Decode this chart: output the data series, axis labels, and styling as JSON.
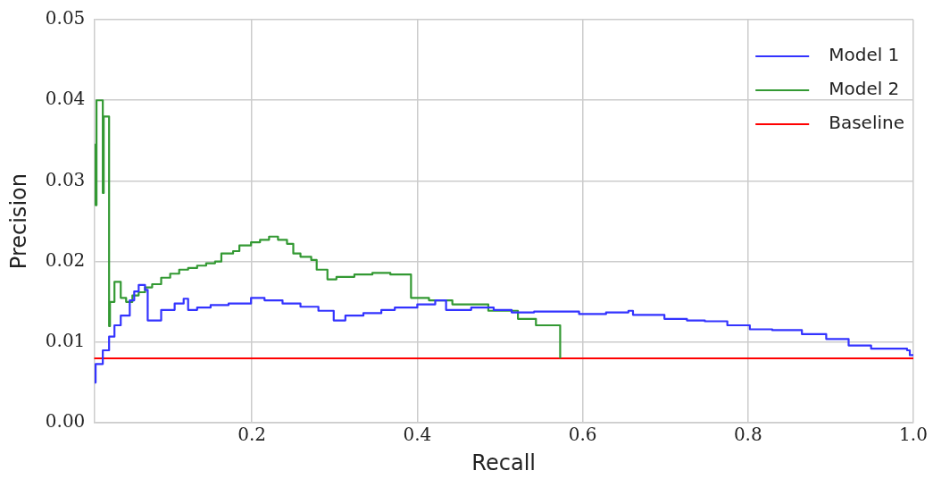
{
  "chart_data": {
    "type": "step",
    "xlabel": "Recall",
    "ylabel": "Precision",
    "xlim": [
      0.009,
      1.0
    ],
    "ylim": [
      0,
      0.05
    ],
    "xticks": [
      0.2,
      0.4,
      0.6,
      0.8,
      {
        "value": 1,
        "label": "1.0"
      }
    ],
    "yticks": [
      {
        "value": 0,
        "label": "0.00"
      },
      {
        "value": 0.01,
        "label": "0.01"
      },
      {
        "value": 0.02,
        "label": "0.02"
      },
      {
        "value": 0.03,
        "label": "0.03"
      },
      {
        "value": 0.04,
        "label": "0.04"
      },
      {
        "value": 0.05,
        "label": "0.05"
      }
    ],
    "grid": true,
    "legend": "top right",
    "line_style": "solid",
    "marker": "none",
    "series": [
      {
        "name": "Model 1",
        "color": "#3333ff",
        "x": [
          0.0098,
          0.0109,
          0.0196,
          0.0272,
          0.0337,
          0.0413,
          0.0522,
          0.0576,
          0.063,
          0.0707,
          0.0739,
          0.0902,
          0.1065,
          0.1174,
          0.1228,
          0.1337,
          0.15,
          0.1717,
          0.1989,
          0.2152,
          0.237,
          0.2587,
          0.2804,
          0.2989,
          0.313,
          0.3348,
          0.3565,
          0.3728,
          0.4,
          0.4217,
          0.4348,
          0.4652,
          0.4924,
          0.5141,
          0.5413,
          0.5957,
          0.6283,
          0.6554,
          0.6609,
          0.6989,
          0.7261,
          0.7478,
          0.775,
          0.8022,
          0.8293,
          0.8652,
          0.8946,
          0.9217,
          0.9489,
          0.9924,
          0.9957,
          1.0
        ],
        "values": [
          0.005,
          0.0073,
          0.009,
          0.0107,
          0.0121,
          0.0133,
          0.0152,
          0.0163,
          0.0171,
          0.0165,
          0.0127,
          0.014,
          0.0148,
          0.0154,
          0.014,
          0.0143,
          0.0146,
          0.0148,
          0.0155,
          0.0152,
          0.0148,
          0.0144,
          0.0139,
          0.0127,
          0.0133,
          0.0136,
          0.014,
          0.0143,
          0.0147,
          0.0152,
          0.014,
          0.0143,
          0.014,
          0.0137,
          0.0138,
          0.0135,
          0.0137,
          0.0139,
          0.0134,
          0.0129,
          0.0127,
          0.0126,
          0.0121,
          0.0116,
          0.0115,
          0.011,
          0.0104,
          0.0096,
          0.0092,
          0.009,
          0.0084,
          0.0084
        ]
      },
      {
        "name": "Model 2",
        "color": "#339933",
        "x": [
          0.0098,
          0.0109,
          0.012,
          0.0196,
          0.0207,
          0.0272,
          0.0283,
          0.0337,
          0.0413,
          0.0478,
          0.0554,
          0.063,
          0.0707,
          0.0793,
          0.0902,
          0.1011,
          0.112,
          0.1228,
          0.1337,
          0.1446,
          0.1554,
          0.163,
          0.1772,
          0.1848,
          0.1989,
          0.2098,
          0.2207,
          0.2315,
          0.2424,
          0.25,
          0.2587,
          0.2717,
          0.2783,
          0.2913,
          0.3022,
          0.3239,
          0.3457,
          0.3674,
          0.3924,
          0.4141,
          0.4424,
          0.4859,
          0.5217,
          0.5435,
          0.5728
        ],
        "values": [
          0.0345,
          0.027,
          0.04,
          0.0285,
          0.038,
          0.012,
          0.015,
          0.0175,
          0.0155,
          0.015,
          0.0158,
          0.0162,
          0.0168,
          0.0172,
          0.018,
          0.0185,
          0.019,
          0.0192,
          0.0195,
          0.0198,
          0.02,
          0.021,
          0.0213,
          0.022,
          0.0224,
          0.0227,
          0.0231,
          0.0227,
          0.0222,
          0.021,
          0.0206,
          0.0202,
          0.019,
          0.0178,
          0.0181,
          0.0184,
          0.0186,
          0.0184,
          0.0155,
          0.0152,
          0.0147,
          0.0139,
          0.0129,
          0.0121,
          0.008
        ]
      },
      {
        "name": "Baseline",
        "color": "#ff0000",
        "x": [
          0.009,
          1.0
        ],
        "values": [
          0.008,
          0.008
        ]
      }
    ]
  }
}
